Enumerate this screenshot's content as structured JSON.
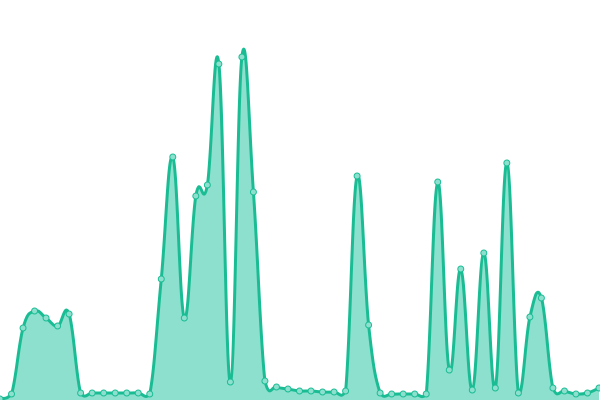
{
  "chart_data": {
    "type": "area",
    "title": "",
    "xlabel": "",
    "ylabel": "",
    "grid": false,
    "legend": "none",
    "axes_visible": false,
    "x": [
      0,
      1,
      2,
      3,
      4,
      5,
      6,
      7,
      8,
      9,
      10,
      11,
      12,
      13,
      14,
      15,
      16,
      17,
      18,
      19,
      20,
      21,
      22,
      23,
      24,
      25,
      26,
      27,
      28,
      29,
      30,
      31,
      32,
      33,
      34,
      35,
      36,
      37,
      38,
      39,
      40,
      41,
      42,
      43,
      44,
      45,
      46,
      47,
      48,
      49,
      50,
      51,
      52
    ],
    "values": [
      1,
      6,
      72,
      89,
      82,
      74,
      86,
      7,
      7,
      7,
      7,
      7,
      7,
      6,
      121,
      243,
      82,
      204,
      215,
      336,
      18,
      343,
      208,
      19,
      13,
      11,
      9,
      9,
      8,
      8,
      9,
      224,
      75,
      7,
      6,
      6,
      6,
      6,
      218,
      30,
      131,
      10,
      147,
      12,
      237,
      7,
      83,
      102,
      12,
      9,
      6,
      7,
      12
    ],
    "ylim": [
      0,
      400
    ],
    "colors": {
      "line": "#1abc94",
      "fill": "#8ce0cd",
      "marker_fill": "#8ce0cd",
      "marker_stroke": "#1abc94"
    },
    "curve": "smooth"
  }
}
